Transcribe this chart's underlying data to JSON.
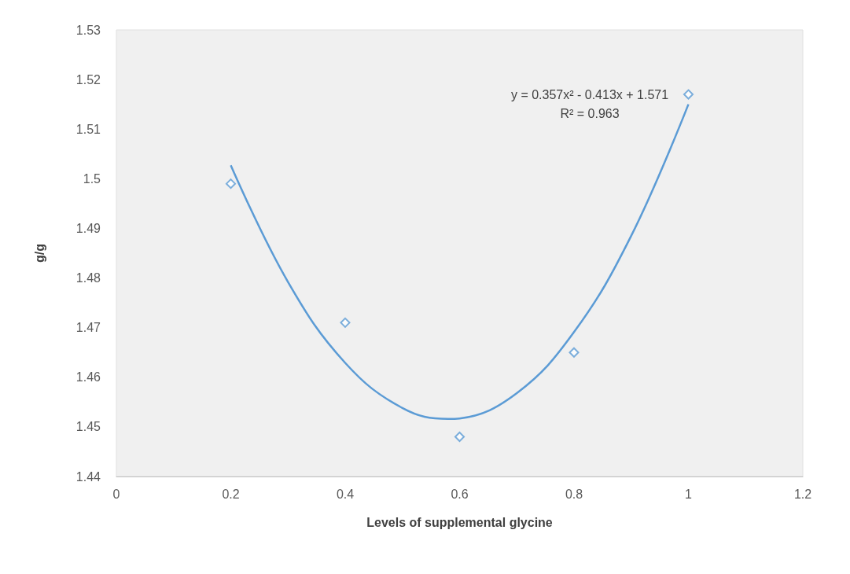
{
  "chart_data": {
    "type": "scatter",
    "xlabel": "Levels of supplemental glycine",
    "ylabel": "g/g",
    "xlim": [
      0,
      1.2
    ],
    "xticks": [
      0,
      0.2,
      0.4,
      0.6,
      0.8,
      1,
      1.2
    ],
    "ylim": [
      1.44,
      1.53
    ],
    "yticks": [
      1.44,
      1.45,
      1.46,
      1.47,
      1.48,
      1.49,
      1.5,
      1.51,
      1.52,
      1.53
    ],
    "grid": false,
    "series": [
      {
        "marker": "diamond",
        "color": "#5b9bd5",
        "x": [
          0.2,
          0.4,
          0.6,
          0.8,
          1.0
        ],
        "values": [
          1.499,
          1.471,
          1.448,
          1.465,
          1.517
        ]
      },
      {
        "type": "line",
        "marker": "none",
        "color": "#5b9bd5",
        "x": [
          0.2,
          0.3,
          0.4,
          0.5,
          0.58,
          0.6,
          0.7,
          0.8,
          0.9,
          1.0
        ],
        "values": [
          1.5027,
          1.4792,
          1.4629,
          1.4538,
          1.4516,
          1.4517,
          1.4568,
          1.4691,
          1.4885,
          1.515
        ]
      }
    ],
    "annotations": [
      "y = 0.357x² - 0.413x + 1.571",
      "R² = 0.963"
    ]
  }
}
